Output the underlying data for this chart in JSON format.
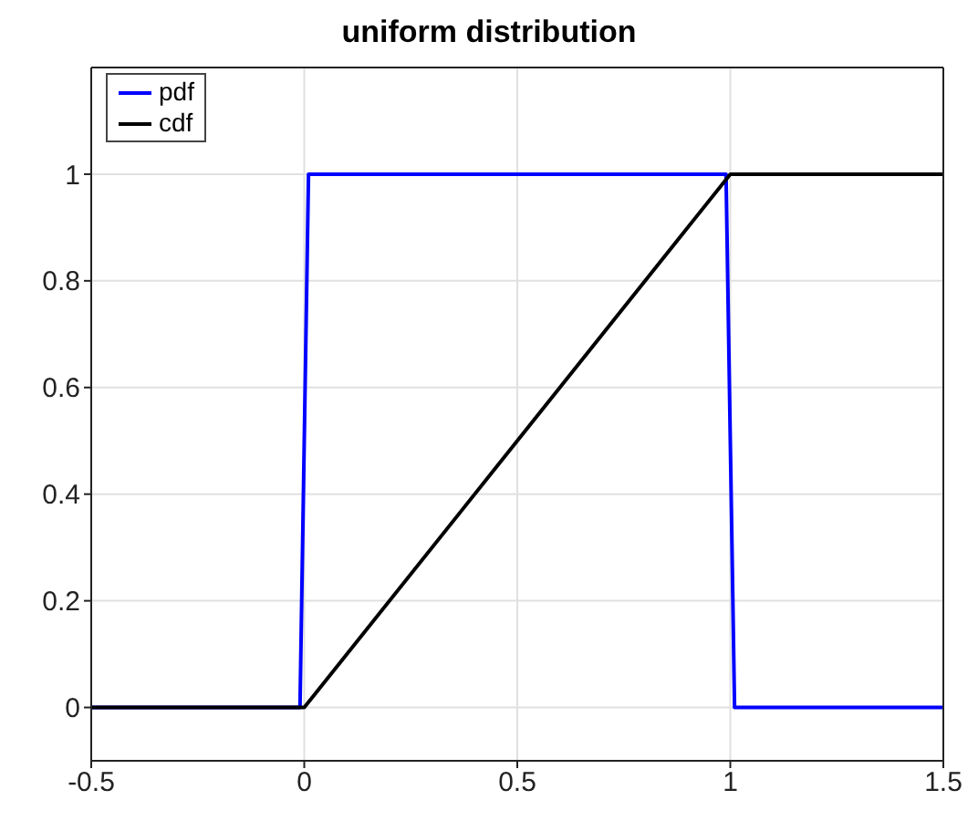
{
  "chart_data": {
    "type": "line",
    "title": "uniform distribution",
    "series": [
      {
        "name": "pdf",
        "color": "#0000ff",
        "x": [
          -0.5,
          -0.01,
          0.01,
          0.99,
          1.01,
          1.5
        ],
        "values": [
          0,
          0,
          1,
          1,
          0,
          0
        ]
      },
      {
        "name": "cdf",
        "color": "#000000",
        "x": [
          -0.5,
          0,
          1,
          1.5
        ],
        "values": [
          0,
          0,
          1,
          1
        ]
      }
    ],
    "xlim": [
      -0.5,
      1.5
    ],
    "xticks": [
      -0.5,
      0,
      0.5,
      1,
      1.5
    ],
    "ylim": [
      -0.1,
      1.2
    ],
    "yticks": [
      0,
      0.2,
      0.4,
      0.6,
      0.8,
      1
    ],
    "grid": true,
    "legend": "top left",
    "marker": "none",
    "line_style": "solid"
  }
}
